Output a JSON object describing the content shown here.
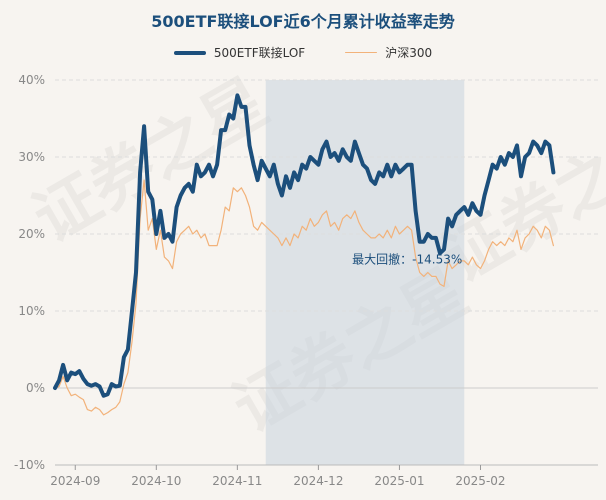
{
  "chart_data": {
    "type": "line",
    "title": "500ETF联接LOF近6个月累计收益率走势",
    "watermark": "证券之星",
    "ylim": [
      -10,
      40
    ],
    "ytick_values": [
      -10,
      0,
      10,
      20,
      30,
      40
    ],
    "ytick_labels": [
      "-10%",
      "0%",
      "10%",
      "20%",
      "30%",
      "40%"
    ],
    "x_tick_labels": [
      "2024-09",
      "2024-10",
      "2024-11",
      "2024-12",
      "2025-01",
      "2025-02"
    ],
    "x_tick_positions": [
      5,
      25,
      45,
      65,
      85,
      105
    ],
    "x_range": [
      0,
      134
    ],
    "drawdown": {
      "label": "最大回撤：-14.53%",
      "start": 52,
      "end": 101,
      "color": "#c8d4de"
    },
    "series": [
      {
        "name": "500ETF联接LOF",
        "color": "#1c4f7c",
        "values": [
          0,
          1,
          3,
          1,
          2,
          1.8,
          2.2,
          1.2,
          0.5,
          0.3,
          0.5,
          0.2,
          -1,
          -0.8,
          0.5,
          0.2,
          0.3,
          4,
          5,
          10,
          15,
          28,
          34,
          25.5,
          24.5,
          20,
          23,
          19.5,
          20,
          19,
          23.5,
          25,
          26,
          26.5,
          25.5,
          29,
          27.5,
          28,
          29,
          27.5,
          29,
          33.5,
          33.5,
          35.5,
          35,
          38,
          36.5,
          36.5,
          31.5,
          29,
          27,
          29.5,
          28.5,
          27.5,
          29,
          26.5,
          25,
          27.5,
          26,
          28,
          27,
          29,
          28.5,
          30,
          29.5,
          29,
          31,
          32,
          30,
          30.5,
          29.5,
          31,
          30,
          29.5,
          32,
          30.5,
          29,
          28.5,
          27,
          26.5,
          28,
          27.5,
          29,
          27.5,
          29,
          28,
          28.5,
          29,
          29,
          23,
          19,
          19,
          20,
          19.5,
          19.5,
          17.5,
          18,
          22,
          21,
          22.5,
          23,
          23.5,
          22.5,
          24,
          23,
          22.5,
          25,
          27,
          29,
          28.5,
          30,
          29,
          30.5,
          30,
          31.5,
          27.5,
          30,
          30.5,
          32,
          31.5,
          30.5,
          32,
          31.5,
          28
        ]
      },
      {
        "name": "沪深300",
        "color": "#f2b27a",
        "values": [
          0,
          0.2,
          1.5,
          0,
          -1,
          -0.8,
          -1.2,
          -1.5,
          -2.8,
          -3,
          -2.5,
          -2.8,
          -3.5,
          -3.2,
          -2.8,
          -2.5,
          -1.8,
          0.5,
          2,
          6,
          11,
          22,
          27,
          20.5,
          22,
          18,
          20.5,
          17,
          16.5,
          15.5,
          19,
          20,
          20.5,
          21,
          20,
          20.5,
          19.5,
          20,
          18.5,
          18.5,
          18.5,
          20.5,
          23.5,
          23,
          26,
          25.5,
          26,
          25,
          23.5,
          21,
          20.5,
          21.5,
          21,
          20.5,
          20,
          19.5,
          18.5,
          19.5,
          18.5,
          20,
          19.5,
          21,
          20.5,
          22,
          21,
          21.5,
          22.5,
          23,
          21,
          21.5,
          20.5,
          22,
          22.5,
          22,
          23,
          21.5,
          20.5,
          20,
          19.5,
          19.5,
          20,
          19.5,
          20.5,
          19.5,
          21,
          20,
          20.5,
          21,
          20.5,
          17,
          15,
          14.5,
          15,
          14.5,
          14.5,
          13.5,
          13.2,
          16.5,
          15.5,
          16,
          16.5,
          16.5,
          16,
          17,
          16,
          15.5,
          16.5,
          18,
          19,
          18.5,
          19,
          18.5,
          19.5,
          19,
          20.5,
          18,
          19.5,
          20,
          21,
          20.5,
          19.5,
          21,
          20.5,
          18.5
        ]
      }
    ]
  }
}
